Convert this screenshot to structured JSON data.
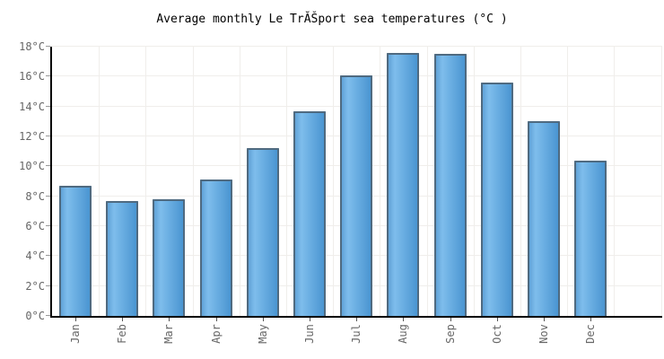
{
  "chart_data": {
    "type": "bar",
    "title": "Average monthly Le TrĂŠport sea temperatures (°C )",
    "categories": [
      "Jan",
      "Feb",
      "Mar",
      "Apr",
      "May",
      "Jun",
      "Jul",
      "Aug",
      "Sep",
      "Oct",
      "Nov",
      "Dec"
    ],
    "values": [
      8.7,
      7.7,
      7.8,
      9.1,
      11.2,
      13.7,
      16.1,
      17.6,
      17.5,
      15.6,
      13.0,
      10.4
    ],
    "unit": "°C",
    "xlabel": "",
    "ylabel": "",
    "ylim": [
      0,
      18
    ],
    "ytick_step": 2,
    "ytick_labels": [
      "0°C",
      "2°C",
      "4°C",
      "6°C",
      "8°C",
      "10°C",
      "12°C",
      "14°C",
      "16°C",
      "18°C"
    ],
    "grid": true,
    "legend": "none",
    "colors": {
      "background": "#ffffff",
      "title": "#000000",
      "axis_line": "#000000",
      "grid_line": "#f0eeeb",
      "tick_label": "#666666",
      "bar_gradient_left": "#61a3d8",
      "bar_gradient_light": "#7ebdec",
      "bar_gradient_right": "#4a95d1",
      "bar_border": "#4f6a80"
    }
  }
}
